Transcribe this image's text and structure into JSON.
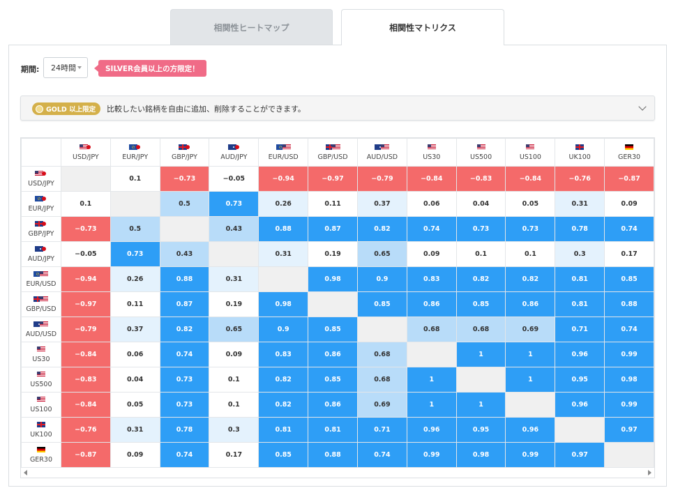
{
  "tabs": [
    {
      "label": "相関性ヒートマップ",
      "active": false
    },
    {
      "label": "相関性マトリクス",
      "active": true
    }
  ],
  "period": {
    "label": "期間:",
    "value": "24時間"
  },
  "silver_badge": "SILVER会員以上の方限定！",
  "gold_bar": {
    "badge": "GOLD 以上限定",
    "text": "比較したい銘柄を自由に追加、削除することができます。"
  },
  "colors": {
    "neg_strong": "#f46a6a",
    "pos_strong": "#2e9ef6",
    "pos_mid": "#b8dcf9",
    "pos_weak": "#e4f2fd",
    "diag": "#f0f0f0",
    "neutral": "#ffffff"
  },
  "matrix": {
    "columns": [
      {
        "label": "USD/JPY",
        "flags": [
          "us",
          "jp"
        ]
      },
      {
        "label": "EUR/JPY",
        "flags": [
          "eu",
          "jp"
        ]
      },
      {
        "label": "GBP/JPY",
        "flags": [
          "gb",
          "jp"
        ]
      },
      {
        "label": "AUD/JPY",
        "flags": [
          "au",
          "jp"
        ]
      },
      {
        "label": "EUR/USD",
        "flags": [
          "eu",
          "us"
        ]
      },
      {
        "label": "GBP/USD",
        "flags": [
          "gb",
          "us"
        ]
      },
      {
        "label": "AUD/USD",
        "flags": [
          "au",
          "us"
        ]
      },
      {
        "label": "US30",
        "flags": [
          "us"
        ]
      },
      {
        "label": "US500",
        "flags": [
          "us"
        ]
      },
      {
        "label": "US100",
        "flags": [
          "us"
        ]
      },
      {
        "label": "UK100",
        "flags": [
          "uk"
        ]
      },
      {
        "label": "GER30",
        "flags": [
          "de"
        ]
      }
    ],
    "rows": [
      [
        "",
        "0.1",
        "−0.73",
        "−0.05",
        "−0.94",
        "−0.97",
        "−0.79",
        "−0.84",
        "−0.83",
        "−0.84",
        "−0.76",
        "−0.87"
      ],
      [
        "0.1",
        "",
        "0.5",
        "0.73",
        "0.26",
        "0.11",
        "0.37",
        "0.06",
        "0.04",
        "0.05",
        "0.31",
        "0.09"
      ],
      [
        "−0.73",
        "0.5",
        "",
        "0.43",
        "0.88",
        "0.87",
        "0.82",
        "0.74",
        "0.73",
        "0.73",
        "0.78",
        "0.74"
      ],
      [
        "−0.05",
        "0.73",
        "0.43",
        "",
        "0.31",
        "0.19",
        "0.65",
        "0.09",
        "0.1",
        "0.1",
        "0.3",
        "0.17"
      ],
      [
        "−0.94",
        "0.26",
        "0.88",
        "0.31",
        "",
        "0.98",
        "0.9",
        "0.83",
        "0.82",
        "0.82",
        "0.81",
        "0.85"
      ],
      [
        "−0.97",
        "0.11",
        "0.87",
        "0.19",
        "0.98",
        "",
        "0.85",
        "0.86",
        "0.85",
        "0.86",
        "0.81",
        "0.88"
      ],
      [
        "−0.79",
        "0.37",
        "0.82",
        "0.65",
        "0.9",
        "0.85",
        "",
        "0.68",
        "0.68",
        "0.69",
        "0.71",
        "0.74"
      ],
      [
        "−0.84",
        "0.06",
        "0.74",
        "0.09",
        "0.83",
        "0.86",
        "0.68",
        "",
        "1",
        "1",
        "0.96",
        "0.99"
      ],
      [
        "−0.83",
        "0.04",
        "0.73",
        "0.1",
        "0.82",
        "0.85",
        "0.68",
        "1",
        "",
        "1",
        "0.95",
        "0.98"
      ],
      [
        "−0.84",
        "0.05",
        "0.73",
        "0.1",
        "0.82",
        "0.86",
        "0.69",
        "1",
        "1",
        "",
        "0.96",
        "0.99"
      ],
      [
        "−0.76",
        "0.31",
        "0.78",
        "0.3",
        "0.81",
        "0.81",
        "0.71",
        "0.96",
        "0.95",
        "0.96",
        "",
        "0.97"
      ],
      [
        "−0.87",
        "0.09",
        "0.74",
        "0.17",
        "0.85",
        "0.88",
        "0.74",
        "0.99",
        "0.98",
        "0.99",
        "0.97",
        ""
      ]
    ]
  }
}
